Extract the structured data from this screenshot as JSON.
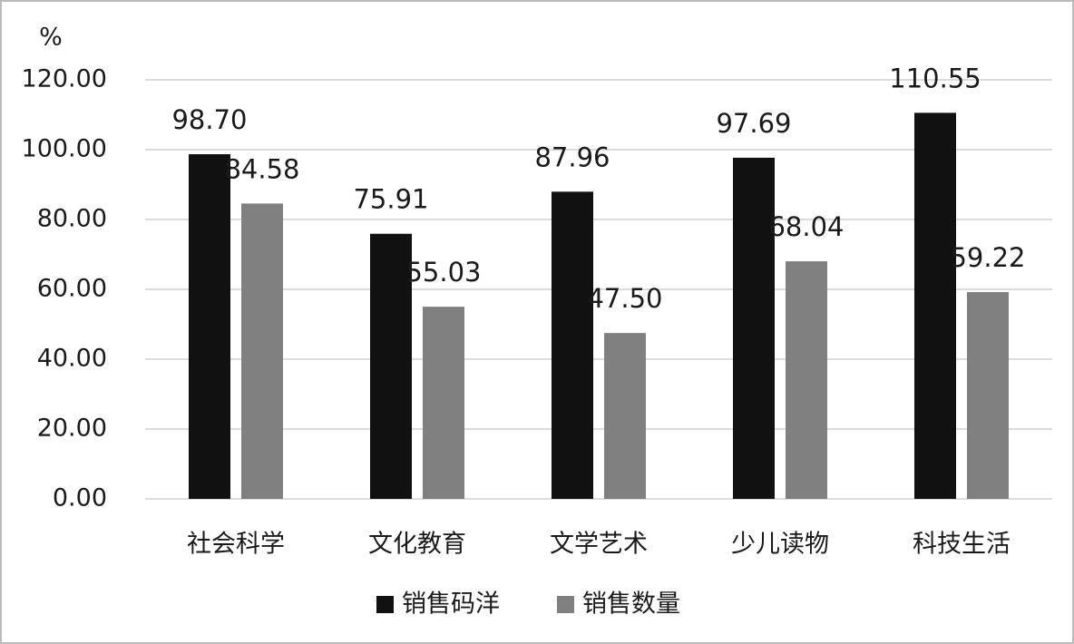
{
  "chart_data": {
    "type": "bar",
    "y_label": "%",
    "categories": [
      "社会科学",
      "文化教育",
      "文学艺术",
      "少儿读物",
      "科技生活"
    ],
    "series": [
      {
        "name": "销售码洋",
        "color": "#111111",
        "values": [
          98.7,
          75.91,
          87.96,
          97.69,
          110.55
        ],
        "value_labels": [
          "98.70",
          "75.91",
          "87.96",
          "97.69",
          "110.55"
        ]
      },
      {
        "name": "销售数量",
        "color": "#808080",
        "values": [
          84.58,
          55.03,
          47.5,
          68.04,
          59.22
        ],
        "value_labels": [
          "84.58",
          "55.03",
          "47.50",
          "68.04",
          "59.22"
        ]
      }
    ],
    "ylim": [
      0,
      120
    ],
    "yticks": [
      {
        "value": 0,
        "label": "0.00"
      },
      {
        "value": 20,
        "label": "20.00"
      },
      {
        "value": 40,
        "label": "40.00"
      },
      {
        "value": 60,
        "label": "60.00"
      },
      {
        "value": 80,
        "label": "80.00"
      },
      {
        "value": 100,
        "label": "100.00"
      },
      {
        "value": 120,
        "label": "120.00"
      }
    ],
    "grid": true,
    "legend": "bottom"
  }
}
